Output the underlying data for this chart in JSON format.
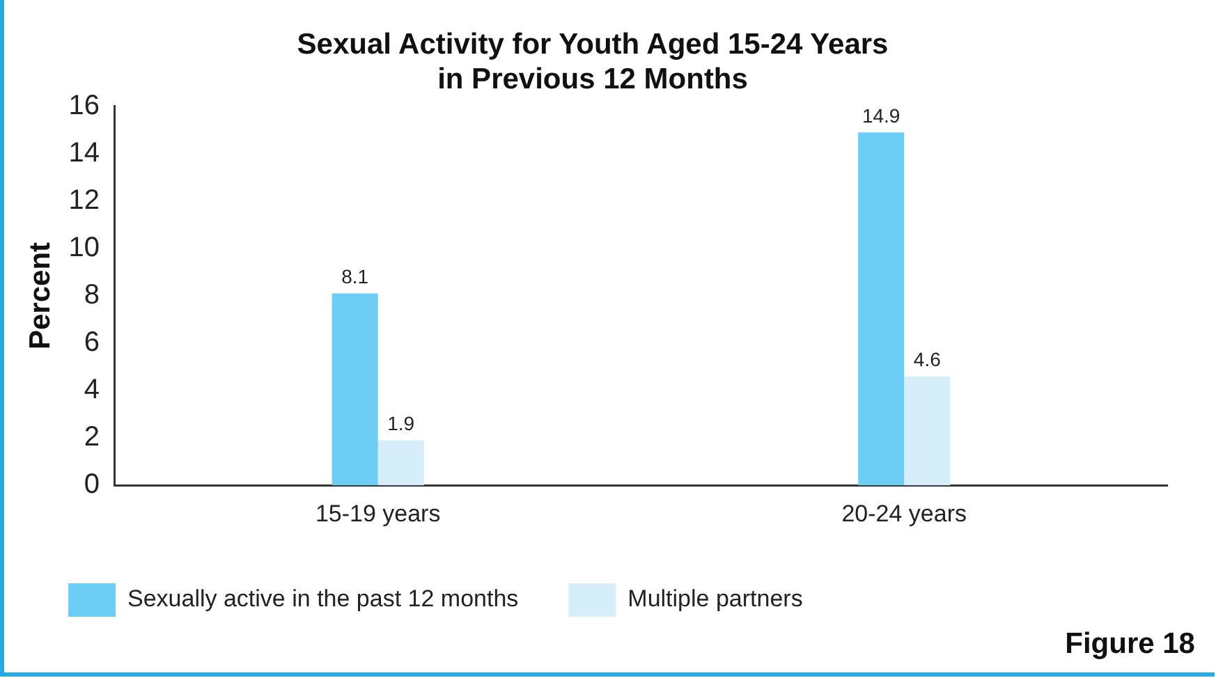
{
  "chart_data": {
    "type": "bar",
    "title": "Sexual Activity for Youth Aged 15-24 Years\nin Previous 12 Months",
    "ylabel": "Percent",
    "categories": [
      "15-19 years",
      "20-24 years"
    ],
    "series": [
      {
        "name": "Sexually active in the past 12 months",
        "color": "#6dcdf4",
        "values": [
          8.1,
          14.9
        ]
      },
      {
        "name": "Multiple partners",
        "color": "#d5eefa",
        "values": [
          1.9,
          4.6
        ]
      }
    ],
    "ylim": [
      0,
      16
    ],
    "yticks": [
      0,
      2,
      4,
      6,
      8,
      10,
      12,
      14,
      16
    ],
    "grid": false,
    "legend": "bottom left",
    "data_labels": true,
    "annotations": [
      "Figure 18"
    ]
  }
}
